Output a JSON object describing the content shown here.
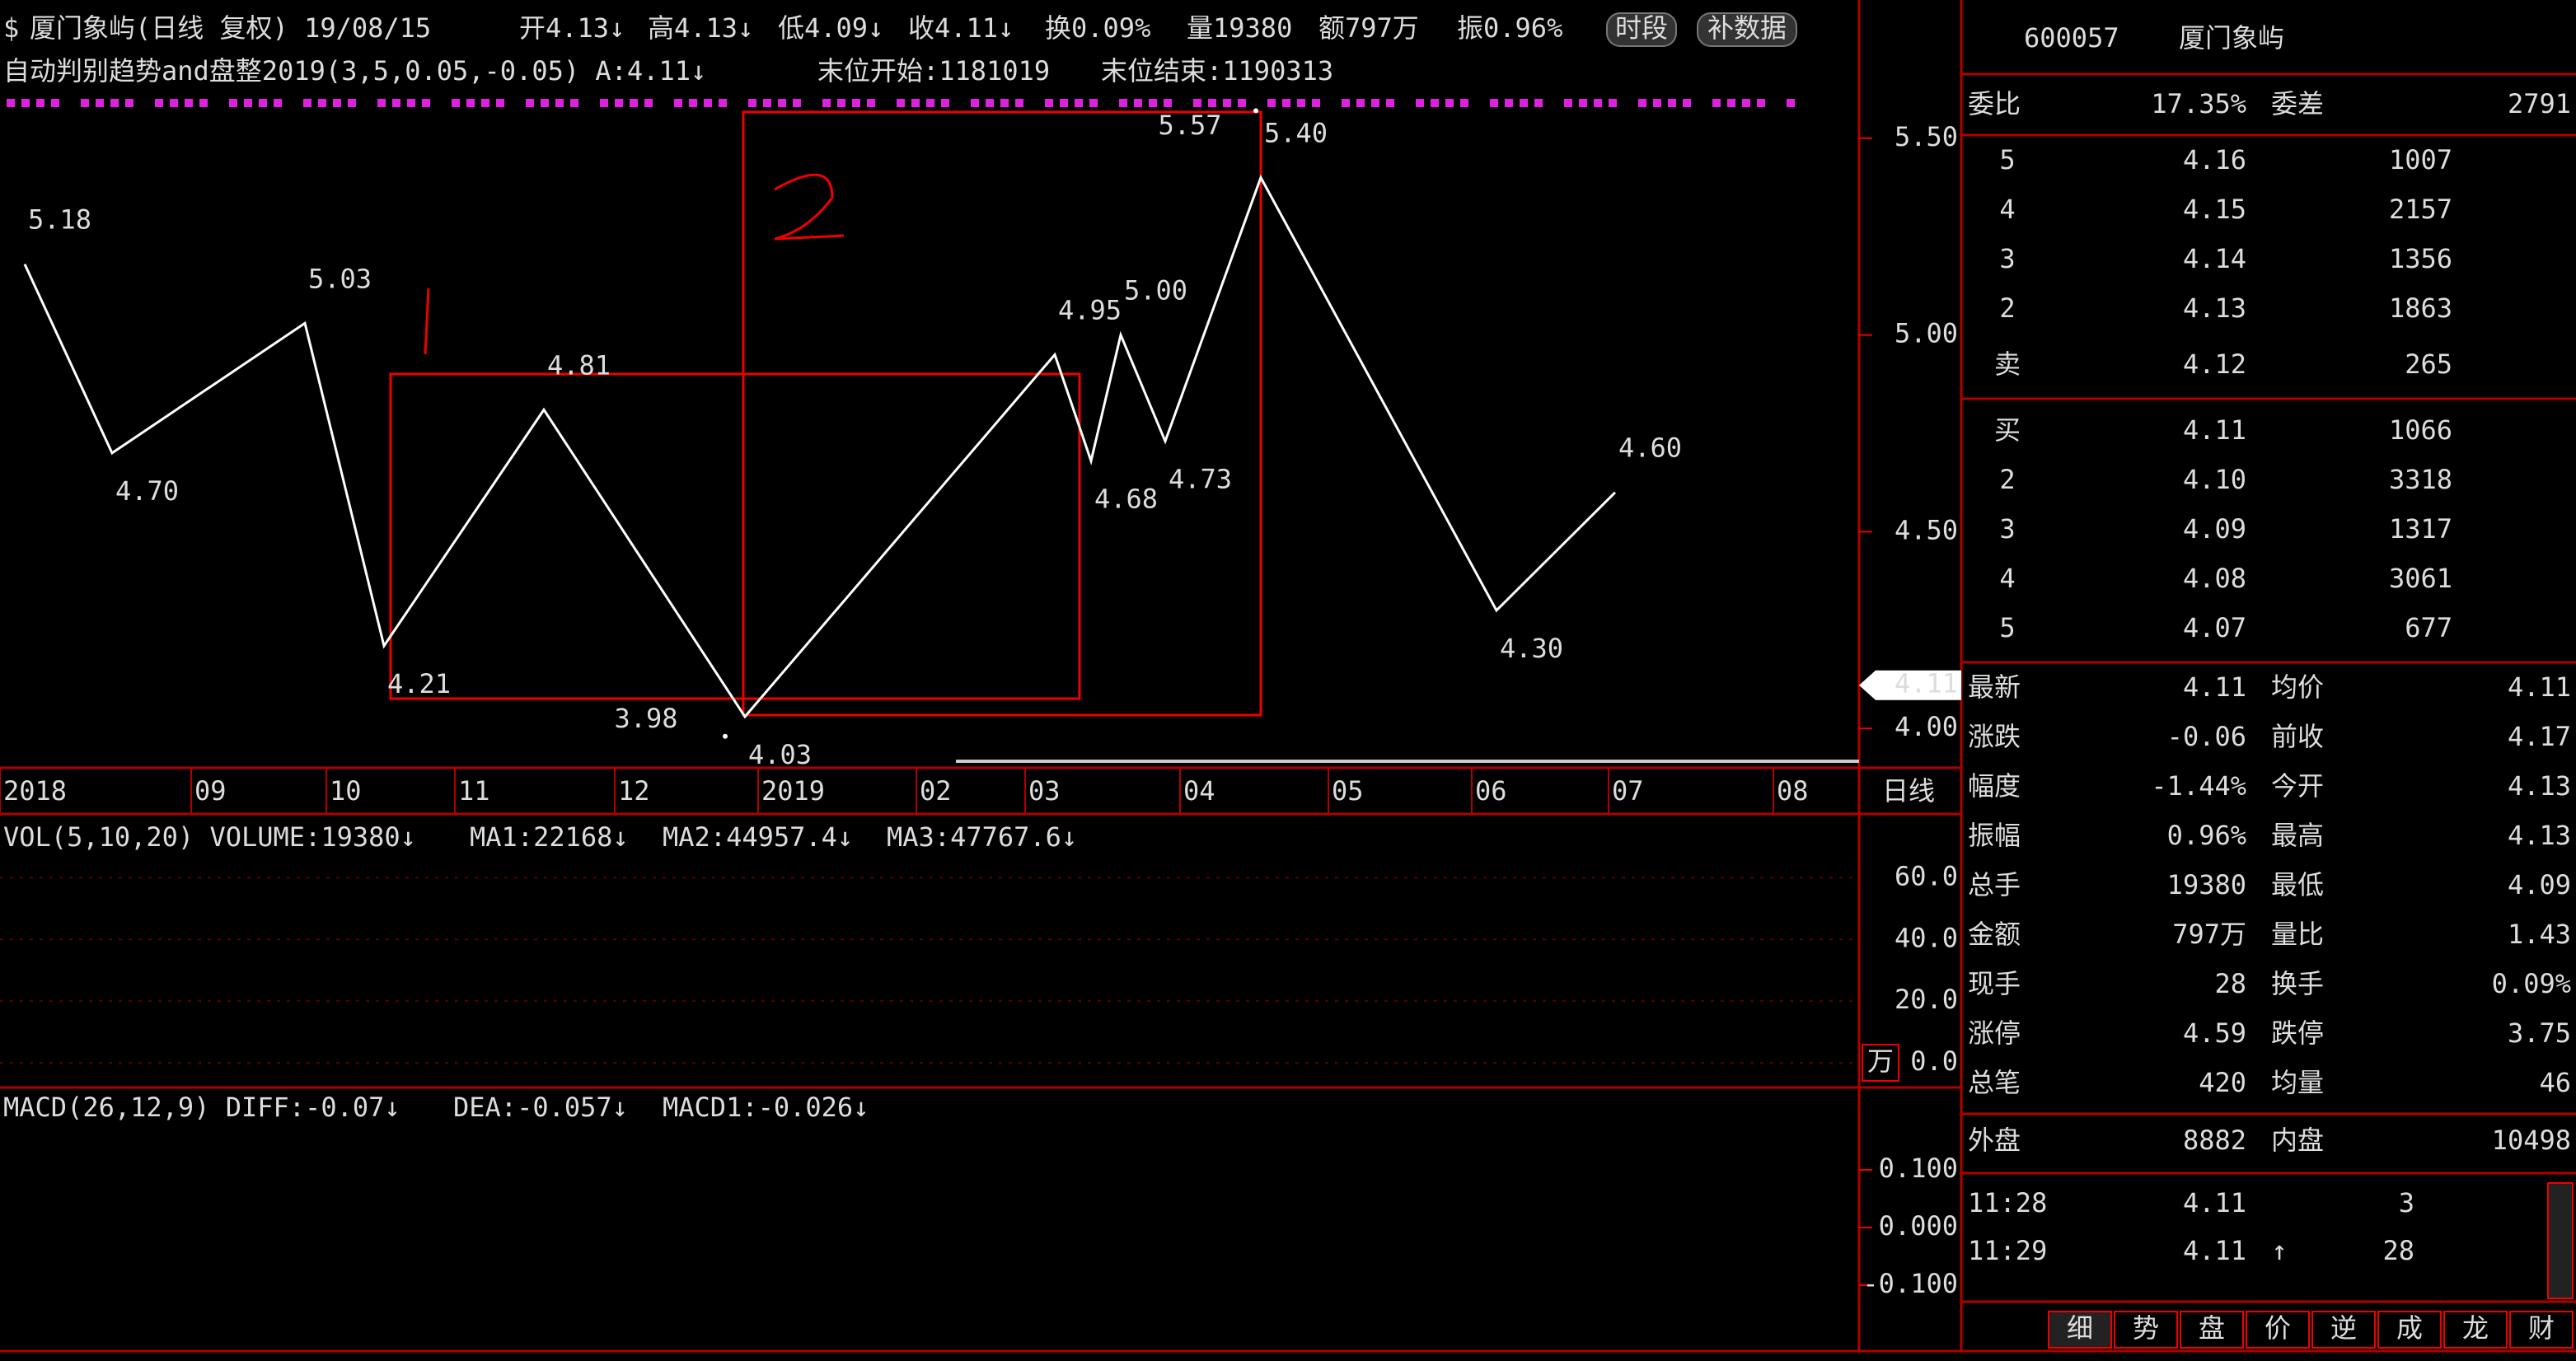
{
  "header": {
    "line1": [
      "厦门象屿(日线 复权) 19/08/15",
      "开4.13↓",
      "高4.13↓",
      "低4.09↓",
      "收4.11↓",
      "换0.09%",
      "量19380",
      "额797万",
      "振0.96%"
    ],
    "buttons": [
      "时段",
      "补数据"
    ],
    "line2": [
      "自动判别趋势and盘整2019(3,5,0.05,-0.05) A:4.11↓",
      "末位开始:1181019",
      "末位结束:1190313"
    ]
  },
  "chart_data": {
    "type": "line",
    "series": [
      {
        "color": "#ffffff",
        "values": [
          5.18,
          4.7,
          5.03,
          4.21,
          4.81,
          4.03,
          4.95,
          4.68,
          5.0,
          4.73,
          5.4,
          4.3,
          4.6
        ],
        "value_labels": [
          "5.18",
          "4.70",
          "5.03",
          "4.21",
          "4.81",
          "4.03",
          "4.95",
          "4.68",
          "5.00",
          "4.73",
          "5.40",
          "4.30",
          "4.60"
        ],
        "label_colors": [
          "#ff33ff",
          "#ffff33",
          "#ff33ff",
          "#ffff33",
          "#ff33ff",
          "#ffff33",
          "#ff33ff",
          "#ffff33",
          "#ff33ff",
          "#ffff33",
          "#ff33ff",
          "#ffff33",
          "#ff33ff"
        ]
      }
    ],
    "extremes": {
      "values": [
        5.57,
        3.98
      ],
      "value_labels": [
        "5.57",
        "3.98"
      ]
    },
    "last": {
      "value": 4.11,
      "label": "4.11"
    },
    "ylim": [
      3.9,
      5.6
    ],
    "yticks": [
      {
        "value": 5.5,
        "label": "5.50"
      },
      {
        "value": 5.0,
        "label": "5.00"
      },
      {
        "value": 4.5,
        "label": "4.50"
      },
      {
        "value": 4.0,
        "label": "4.00"
      }
    ],
    "x_axis_labels": [
      "2018",
      "09",
      "10",
      "11",
      "12",
      "2019",
      "02",
      "03",
      "04",
      "05",
      "06",
      "07",
      "08"
    ],
    "period": "日线",
    "volume": {
      "header": [
        "VOL(5,10,20) VOLUME:19380↓",
        "MA1:22168↓",
        "MA2:44957.4↓",
        "MA3:47767.6↓"
      ],
      "unit": "万",
      "ylim": [
        0,
        70
      ],
      "yticks": [
        {
          "value": 60,
          "label": "60.0"
        },
        {
          "value": 40,
          "label": "40.0"
        },
        {
          "value": 20,
          "label": "20.0"
        },
        {
          "value": 0,
          "label": "0.0"
        }
      ]
    },
    "macd": {
      "header": [
        "MACD(26,12,9) DIFF:-0.07↓",
        "DEA:-0.057↓",
        "MACD1:-0.026↓"
      ],
      "ylim": [
        -0.2,
        0.2
      ],
      "yticks": [
        {
          "value": 0.1,
          "label": "0.100"
        },
        {
          "value": 0,
          "label": "0.000"
        },
        {
          "value": -0.1,
          "label": "-0.100"
        }
      ]
    }
  },
  "quote": {
    "code": "600057",
    "name": "厦门象屿",
    "ratio": [
      "委比",
      "17.35%",
      "委差",
      "2791"
    ],
    "sell": [
      [
        "5",
        "4.16",
        "1007"
      ],
      [
        "4",
        "4.15",
        "2157"
      ],
      [
        "3",
        "4.14",
        "1356"
      ],
      [
        "2",
        "4.13",
        "1863"
      ],
      [
        "卖",
        "4.12",
        "265"
      ]
    ],
    "buy": [
      [
        "买",
        "4.11",
        "1066"
      ],
      [
        "2",
        "4.10",
        "3318"
      ],
      [
        "3",
        "4.09",
        "1317"
      ],
      [
        "4",
        "4.08",
        "3061"
      ],
      [
        "5",
        "4.07",
        "677"
      ]
    ],
    "stats": [
      [
        "最新",
        "4.11",
        "均价",
        "4.11"
      ],
      [
        "涨跌",
        "-0.06",
        "前收",
        "4.17"
      ],
      [
        "幅度",
        "-1.44%",
        "今开",
        "4.13"
      ],
      [
        "振幅",
        "0.96%",
        "最高",
        "4.13"
      ],
      [
        "总手",
        "19380",
        "最低",
        "4.09"
      ],
      [
        "金额",
        "797万",
        "量比",
        "1.43"
      ],
      [
        "现手",
        "28",
        "换手",
        "0.09%"
      ],
      [
        "涨停",
        "4.59",
        "跌停",
        "3.75"
      ],
      [
        "总笔",
        "420",
        "均量",
        "46"
      ]
    ],
    "outer": [
      "外盘",
      "8882",
      "内盘",
      "10498"
    ],
    "ticks": [
      [
        "11:28",
        "4.11",
        "3"
      ],
      [
        "11:29",
        "4.11",
        "↑",
        "28"
      ]
    ],
    "tabs": [
      "细",
      "势",
      "盘",
      "价",
      "逆",
      "成",
      "龙",
      "财"
    ]
  }
}
